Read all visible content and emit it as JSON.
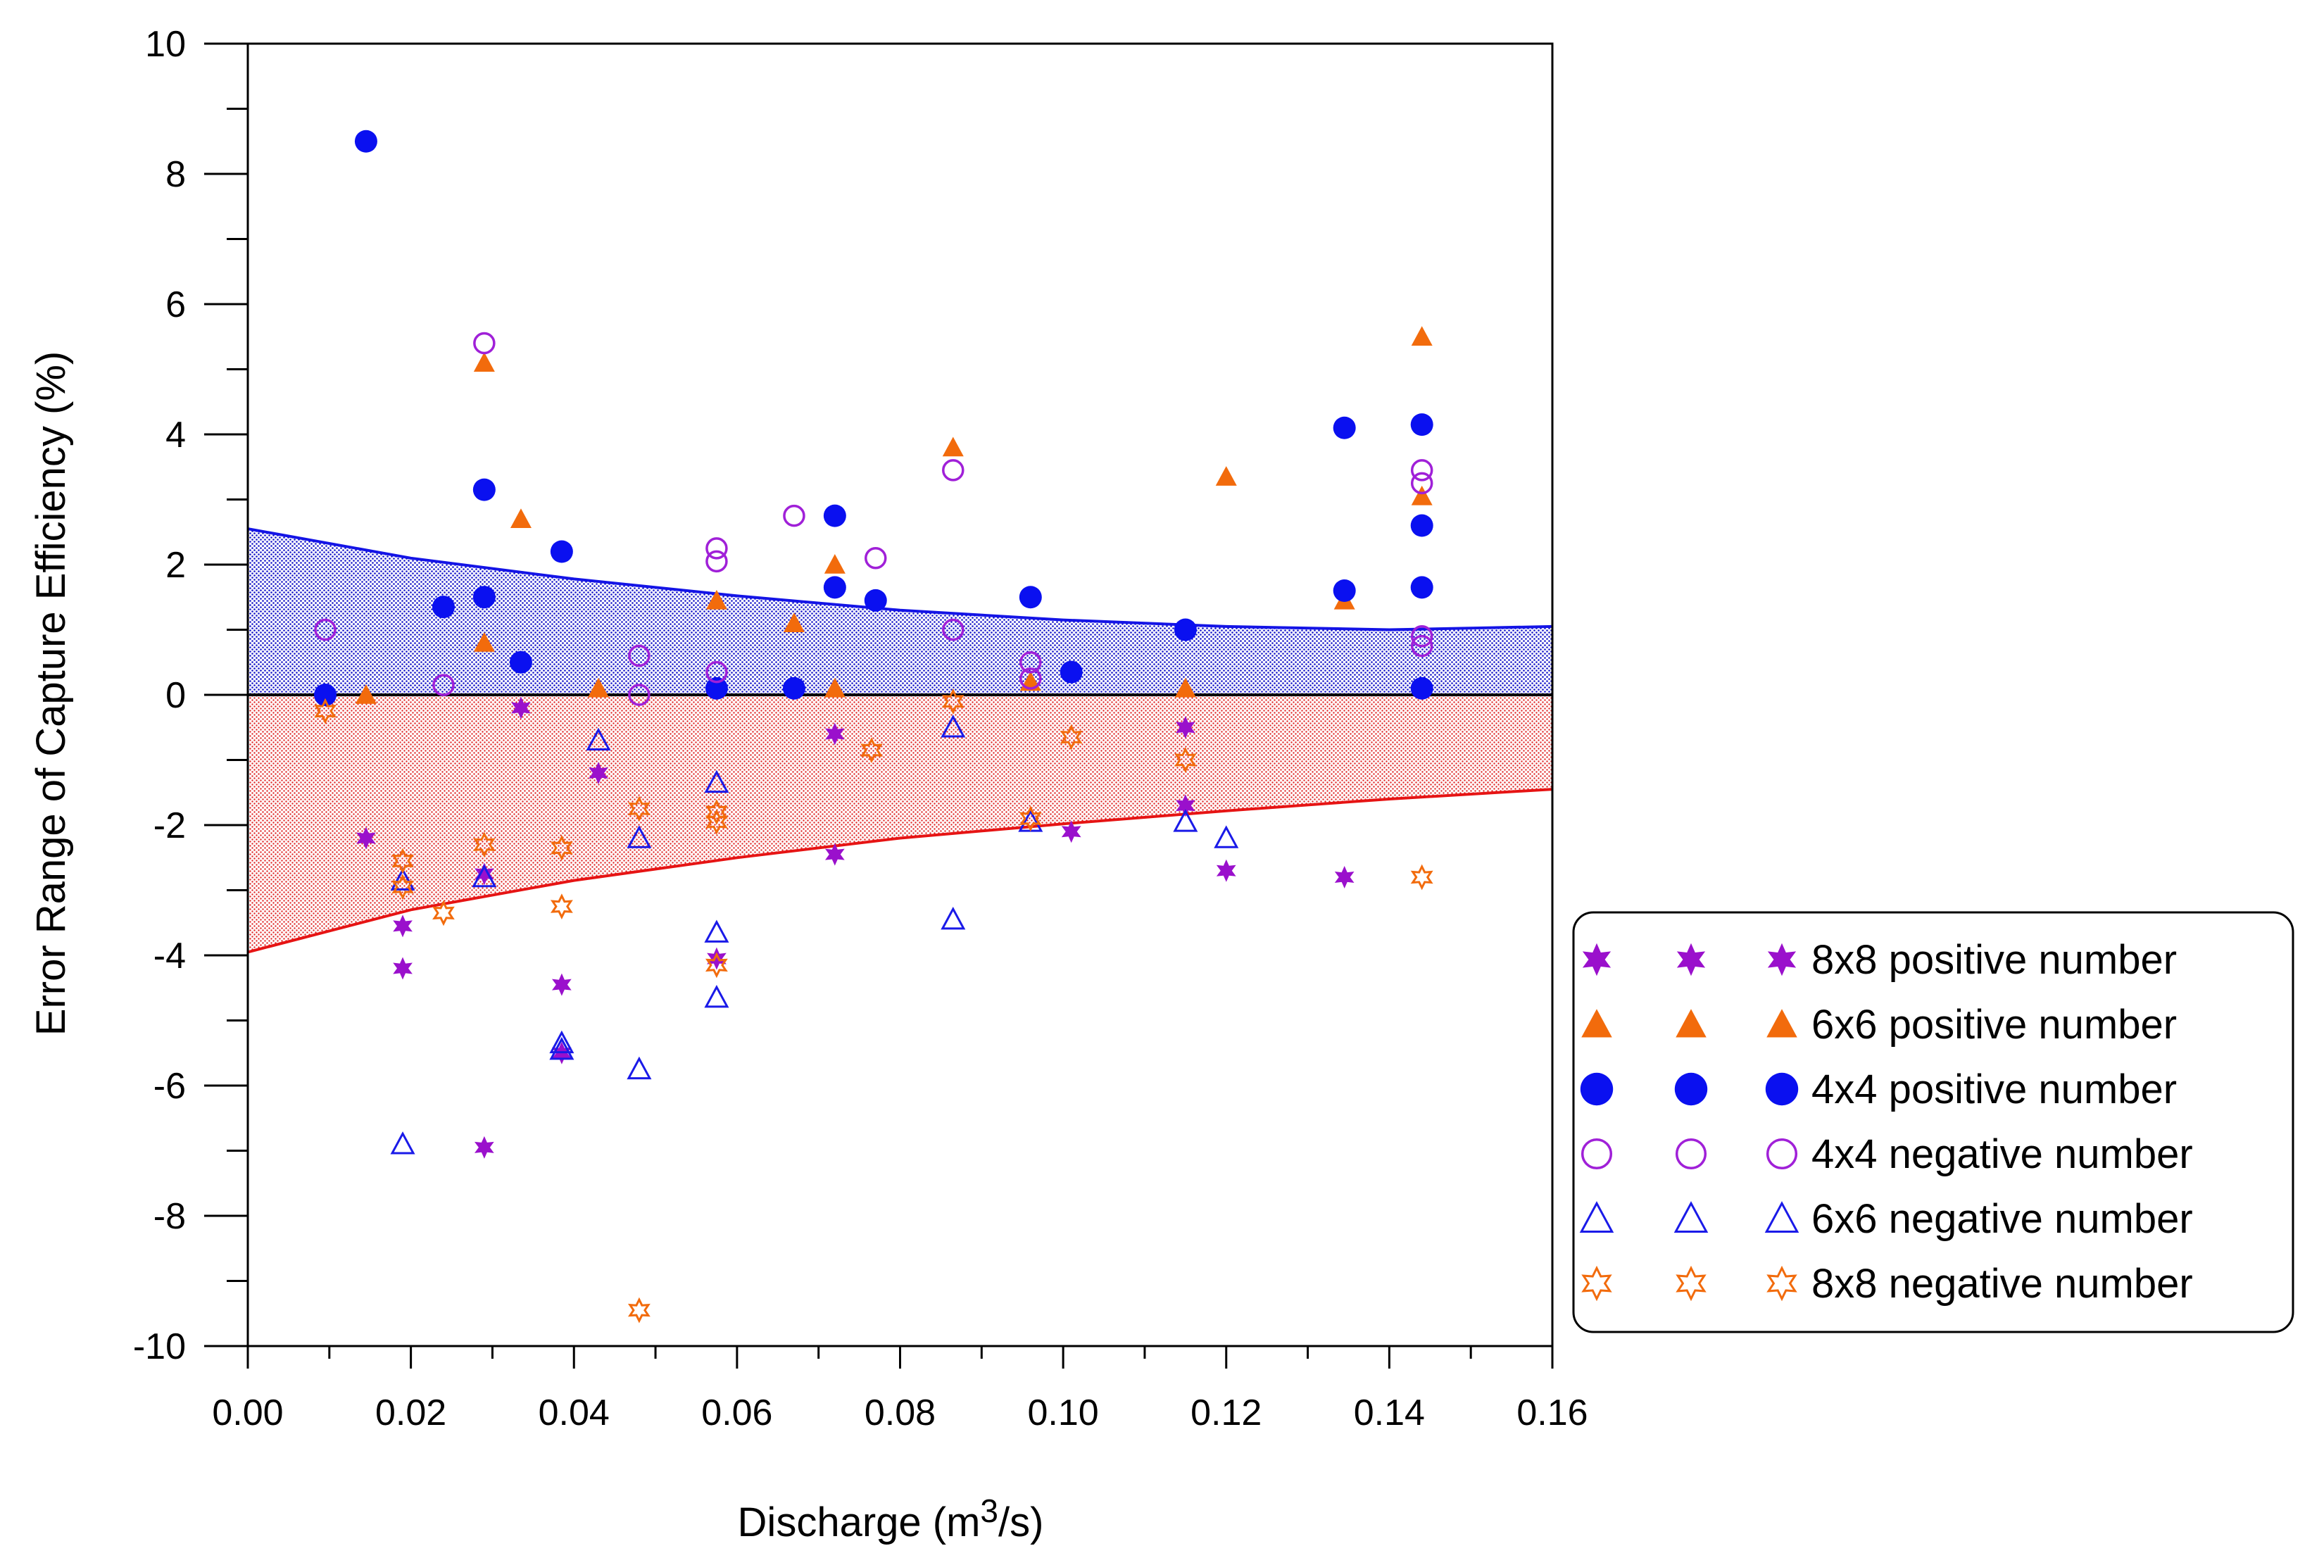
{
  "chart_data": {
    "type": "scatter",
    "title": "",
    "xlabel_prefix": "Discharge (m",
    "xlabel_sup": "3",
    "xlabel_suffix": "/s)",
    "ylabel": "Error Range of Capture Efficiency (%)",
    "xlim": [
      0,
      0.16
    ],
    "ylim": [
      -10,
      10
    ],
    "x_ticks": [
      0.0,
      0.02,
      0.04,
      0.06,
      0.08,
      0.1,
      0.12,
      0.14,
      0.16
    ],
    "x_tick_labels": [
      "0.00",
      "0.02",
      "0.04",
      "0.06",
      "0.08",
      "0.10",
      "0.12",
      "0.14",
      "0.16"
    ],
    "x_minor_step": 0.01,
    "y_ticks": [
      -10,
      -8,
      -6,
      -4,
      -2,
      0,
      2,
      4,
      6,
      8,
      10
    ],
    "y_tick_labels": [
      "-10",
      "-8",
      "-6",
      "-4",
      "-2",
      "0",
      "2",
      "4",
      "6",
      "8",
      "10"
    ],
    "y_minor_step": 1,
    "grid": false,
    "legend_position": "right",
    "zero_line": true,
    "upper_band": {
      "color": "#1414e6",
      "x": [
        0.0,
        0.02,
        0.04,
        0.06,
        0.08,
        0.1,
        0.12,
        0.14,
        0.16
      ],
      "y": [
        2.55,
        2.1,
        1.78,
        1.52,
        1.3,
        1.15,
        1.05,
        1.0,
        1.05
      ]
    },
    "lower_band": {
      "color": "#e61414",
      "x": [
        0.0,
        0.02,
        0.04,
        0.06,
        0.08,
        0.1,
        0.12,
        0.14,
        0.16
      ],
      "y": [
        -3.95,
        -3.3,
        -2.85,
        -2.5,
        -2.2,
        -1.98,
        -1.78,
        -1.6,
        -1.45
      ]
    },
    "series": [
      {
        "name": "8x8 positive number",
        "marker": "star6-filled",
        "color": "#9a10cc",
        "x": [
          0.0145,
          0.019,
          0.019,
          0.029,
          0.029,
          0.0335,
          0.0385,
          0.0385,
          0.043,
          0.0575,
          0.072,
          0.072,
          0.101,
          0.115,
          0.115,
          0.12,
          0.1345
        ],
        "y": [
          -2.2,
          -3.55,
          -4.2,
          -2.75,
          -6.95,
          -0.2,
          -4.45,
          -5.5,
          -1.2,
          -4.05,
          -0.6,
          -2.45,
          -2.1,
          -0.5,
          -1.7,
          -2.7,
          -2.8
        ]
      },
      {
        "name": "6x6 positive number",
        "marker": "triangle-filled",
        "color": "#f26b0c",
        "x": [
          0.0145,
          0.029,
          0.029,
          0.0335,
          0.043,
          0.0575,
          0.067,
          0.072,
          0.072,
          0.0865,
          0.096,
          0.115,
          0.12,
          0.1345,
          0.144,
          0.144
        ],
        "y": [
          0.0,
          5.1,
          0.8,
          2.7,
          0.1,
          1.45,
          1.1,
          2.0,
          0.1,
          3.8,
          0.2,
          0.1,
          3.35,
          1.45,
          5.5,
          3.05
        ]
      },
      {
        "name": "4x4 positive number",
        "marker": "circle-filled",
        "color": "#0a10f0",
        "x": [
          0.0095,
          0.0145,
          0.024,
          0.029,
          0.029,
          0.0335,
          0.0385,
          0.0575,
          0.067,
          0.072,
          0.072,
          0.077,
          0.096,
          0.101,
          0.115,
          0.1345,
          0.1345,
          0.144,
          0.144,
          0.144,
          0.144
        ],
        "y": [
          0.0,
          8.5,
          1.35,
          3.15,
          1.5,
          0.5,
          2.2,
          0.1,
          0.1,
          2.75,
          1.65,
          1.45,
          1.5,
          0.35,
          1.0,
          4.1,
          1.6,
          4.15,
          2.6,
          1.65,
          0.1
        ]
      },
      {
        "name": "4x4 negative number",
        "marker": "circle-open",
        "color": "#a020d8",
        "x": [
          0.0095,
          0.024,
          0.029,
          0.048,
          0.048,
          0.0575,
          0.0575,
          0.0575,
          0.067,
          0.077,
          0.0865,
          0.0865,
          0.096,
          0.096,
          0.144,
          0.144,
          0.144,
          0.144
        ],
        "y": [
          1.0,
          0.15,
          5.4,
          0.6,
          0.0,
          2.25,
          2.05,
          0.35,
          2.75,
          2.1,
          3.45,
          1.0,
          0.5,
          0.25,
          3.45,
          3.25,
          0.9,
          0.75
        ]
      },
      {
        "name": "6x6 negative number",
        "marker": "triangle-open",
        "color": "#1a1ae8",
        "x": [
          0.019,
          0.019,
          0.029,
          0.0385,
          0.0385,
          0.043,
          0.048,
          0.048,
          0.0575,
          0.0575,
          0.0575,
          0.0865,
          0.0865,
          0.096,
          0.115,
          0.12
        ],
        "y": [
          -2.85,
          -6.9,
          -2.8,
          -5.35,
          -5.45,
          -0.7,
          -2.2,
          -5.75,
          -1.35,
          -3.65,
          -4.65,
          -0.5,
          -3.45,
          -1.95,
          -1.95,
          -2.2
        ]
      },
      {
        "name": "8x8 negative number",
        "marker": "star6-open",
        "color": "#f26b0c",
        "x": [
          0.0095,
          0.019,
          0.019,
          0.024,
          0.029,
          0.0385,
          0.0385,
          0.048,
          0.048,
          0.0575,
          0.0575,
          0.0575,
          0.0765,
          0.0865,
          0.096,
          0.101,
          0.115,
          0.144
        ],
        "y": [
          -0.25,
          -2.55,
          -2.95,
          -3.35,
          -2.3,
          -2.35,
          -3.25,
          -1.75,
          -9.45,
          -1.8,
          -1.95,
          -4.15,
          -0.85,
          -0.1,
          -1.9,
          -0.65,
          -1.0,
          -2.8
        ]
      }
    ]
  }
}
